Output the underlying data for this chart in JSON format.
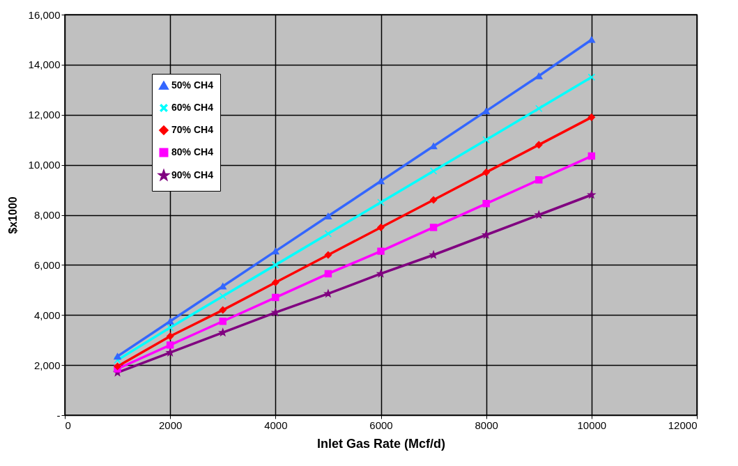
{
  "chart_data": {
    "type": "line",
    "xlabel": "Inlet Gas Rate (Mcf/d)",
    "ylabel": "$x1000",
    "x": [
      1000,
      2000,
      3000,
      4000,
      5000,
      6000,
      7000,
      8000,
      9000,
      10000
    ],
    "xlim": [
      0,
      12000
    ],
    "xticks": [
      0,
      2000,
      4000,
      6000,
      8000,
      10000,
      12000
    ],
    "ylim": [
      0,
      16000
    ],
    "yticks": [
      {
        "value": 0,
        "label": "-"
      },
      {
        "value": 2000,
        "label": "2,000"
      },
      {
        "value": 4000,
        "label": "4,000"
      },
      {
        "value": 6000,
        "label": "6,000"
      },
      {
        "value": 8000,
        "label": "8,000"
      },
      {
        "value": 10000,
        "label": "10,000"
      },
      {
        "value": 12000,
        "label": "12,000"
      },
      {
        "value": 14000,
        "label": "14,000"
      },
      {
        "value": 16000,
        "label": "16,000"
      }
    ],
    "grid": true,
    "legend": "top left",
    "series": [
      {
        "name": "50% CH4",
        "color": "#3366ff",
        "marker": "triangle",
        "values": [
          2350,
          3750,
          5150,
          6550,
          7950,
          9350,
          10750,
          12150,
          13550,
          15000
        ]
      },
      {
        "name": "60% CH4",
        "color": "#00ffff",
        "marker": "cross",
        "values": [
          2200,
          3500,
          4750,
          6000,
          7250,
          8500,
          9750,
          11000,
          12250,
          13500
        ]
      },
      {
        "name": "70% CH4",
        "color": "#ff0000",
        "marker": "diamond",
        "values": [
          1950,
          3150,
          4200,
          5300,
          6400,
          7500,
          8600,
          9700,
          10800,
          11900
        ]
      },
      {
        "name": "80% CH4",
        "color": "#ff00ff",
        "marker": "square",
        "values": [
          1850,
          2800,
          3750,
          4700,
          5650,
          6550,
          7500,
          8450,
          9400,
          10350
        ]
      },
      {
        "name": "90% CH4",
        "color": "#800080",
        "marker": "star",
        "values": [
          1700,
          2500,
          3300,
          4100,
          4850,
          5650,
          6400,
          7200,
          8000,
          8800
        ]
      }
    ]
  }
}
